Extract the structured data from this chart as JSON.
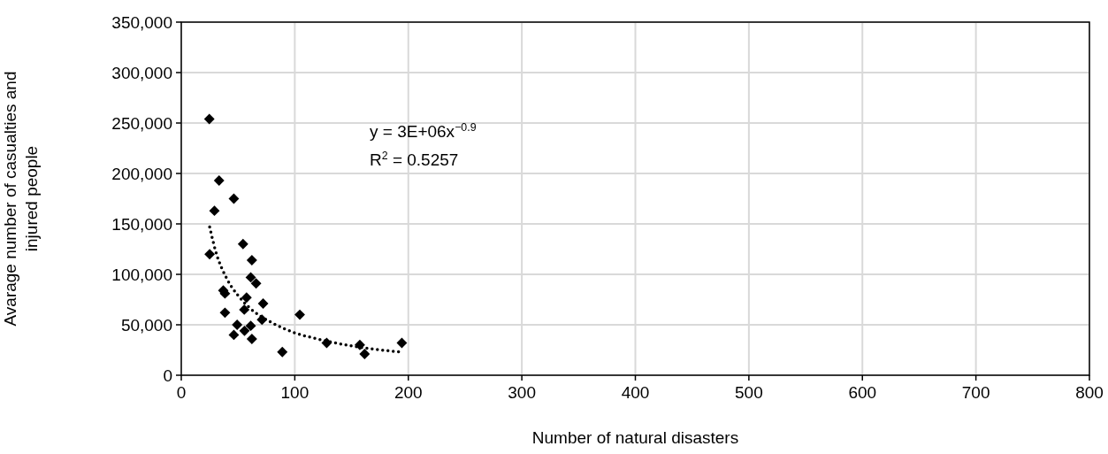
{
  "chart_data": {
    "type": "scatter",
    "xlabel": "Number of natural disasters",
    "ylabel": "Avarage number of casualties and injured people",
    "xlim": [
      0,
      800
    ],
    "xticks": [
      0,
      100,
      200,
      300,
      400,
      500,
      600,
      700,
      800
    ],
    "ylim": [
      0,
      350000
    ],
    "yticks": [
      {
        "value": 0,
        "label": "0"
      },
      {
        "value": 50000,
        "label": "50,000"
      },
      {
        "value": 100000,
        "label": "100,000"
      },
      {
        "value": 150000,
        "label": "150,000"
      },
      {
        "value": 200000,
        "label": "200,000"
      },
      {
        "value": 250000,
        "label": "250,000"
      },
      {
        "value": 300000,
        "label": "300,000"
      },
      {
        "value": 350000,
        "label": "350,000"
      }
    ],
    "grid": true,
    "annotations": [
      "y = 3E+06x$^{−0.9}$",
      "R$^{2}$ = 0.5257"
    ],
    "series": [
      {
        "color": "#000000",
        "marker": "diamond",
        "x": [
          24.7,
          33.3,
          46.3,
          29.2,
          54.4,
          25,
          62.2,
          61.2,
          65.9,
          37,
          38.5,
          57.5,
          72.1,
          38.5,
          55.5,
          71.1,
          49.2,
          61.2,
          55.7,
          46.3,
          62.2,
          89,
          104.4,
          128.1,
          157.3,
          161.5,
          194.3
        ],
        "values": [
          254000,
          193000,
          175000,
          163000,
          130000,
          120000,
          114000,
          97000,
          91000,
          84000,
          81000,
          77000,
          71000,
          62000,
          65000,
          55000,
          50000,
          49000,
          44000,
          40000,
          36000,
          23000,
          60000,
          32000,
          30000,
          21000,
          32000
        ]
      },
      {
        "type": "line",
        "color": "#000000",
        "line_style": "dotted",
        "x": [
          25,
          30,
          40,
          50,
          60,
          80,
          100,
          120,
          150,
          194
        ],
        "values": [
          147000,
          124000,
          96000,
          79000,
          67000,
          52000,
          42000,
          36000,
          29000,
          23000
        ]
      }
    ]
  }
}
